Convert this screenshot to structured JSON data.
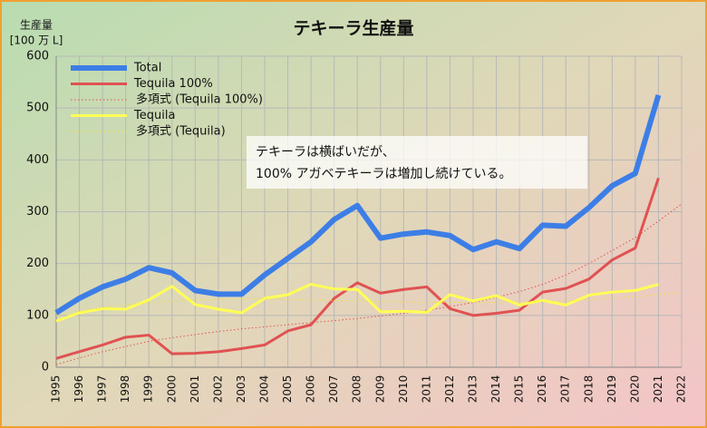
{
  "chart_data": {
    "type": "line",
    "title": "テキーラ生産量",
    "y_label": [
      "生産量",
      "[100 万 L]"
    ],
    "annotation": [
      "テキーラは横ばいだが、",
      "100% アガベテキーラは増加し続けている。"
    ],
    "x": [
      1995,
      1996,
      1997,
      1998,
      1999,
      2000,
      2001,
      2002,
      2003,
      2004,
      2005,
      2006,
      2007,
      2008,
      2009,
      2010,
      2011,
      2012,
      2013,
      2014,
      2015,
      2016,
      2017,
      2018,
      2019,
      2020,
      2021,
      2022
    ],
    "xlim": [
      1995,
      2022
    ],
    "xticks": [
      1995,
      1996,
      1997,
      1998,
      1999,
      2000,
      2001,
      2002,
      2003,
      2004,
      2005,
      2006,
      2007,
      2008,
      2009,
      2010,
      2011,
      2012,
      2013,
      2014,
      2015,
      2016,
      2017,
      2018,
      2019,
      2020,
      2021,
      2022
    ],
    "ylim": [
      0,
      600
    ],
    "yticks": [
      0,
      100,
      200,
      300,
      400,
      500,
      600
    ],
    "grid": true,
    "legend": "upper left",
    "series": [
      {
        "name": "Total",
        "color": "#3d7ee6",
        "line_style": "bold",
        "values": [
          105,
          133,
          155,
          170,
          192,
          182,
          148,
          141,
          141,
          178,
          210,
          242,
          285,
          312,
          249,
          257,
          261,
          254,
          227,
          242,
          229,
          274,
          272,
          308,
          350,
          374,
          525,
          null
        ]
      },
      {
        "name": "Tequila 100%",
        "color": "#e05252",
        "line_style": "solid",
        "values": [
          17,
          30,
          43,
          58,
          62,
          26,
          27,
          30,
          36,
          43,
          70,
          82,
          133,
          163,
          143,
          150,
          155,
          113,
          100,
          104,
          110,
          145,
          152,
          170,
          207,
          230,
          365,
          null
        ]
      },
      {
        "name": "多項式 (Tequila 100%)",
        "color": "#e05252",
        "line_style": "dotted",
        "values": [
          5,
          18,
          30,
          40,
          50,
          57,
          63,
          69,
          74,
          78,
          82,
          86,
          90,
          94,
          99,
          104,
          110,
          117,
          125,
          135,
          146,
          160,
          178,
          200,
          225,
          250,
          282,
          315
        ]
      },
      {
        "name": "Tequila",
        "color": "#ffff55",
        "line_style": "solid",
        "values": [
          89,
          105,
          113,
          112,
          130,
          156,
          121,
          112,
          105,
          133,
          140,
          160,
          151,
          150,
          107,
          108,
          106,
          140,
          128,
          138,
          120,
          129,
          120,
          139,
          145,
          148,
          160,
          null
        ]
      },
      {
        "name": "多項式 (Tequila)",
        "color": "#f0e040",
        "line_style": "dotted",
        "values": [
          100,
          108,
          115,
          120,
          125,
          128,
          130,
          131,
          132,
          132,
          131,
          130,
          129,
          128,
          127,
          126,
          125,
          125,
          125,
          125,
          126,
          127,
          128,
          130,
          133,
          136,
          140,
          144
        ]
      }
    ]
  }
}
